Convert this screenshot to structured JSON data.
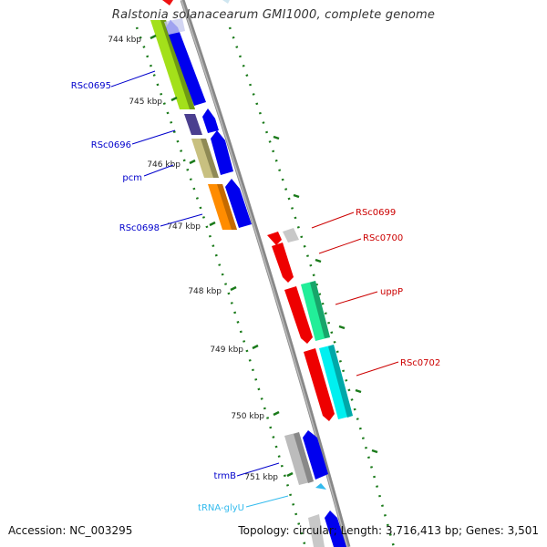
{
  "title": "Ralstonia solanacearum GMI1000, complete genome",
  "footer": {
    "accession": "Accession: NC_003295",
    "topology": "Topology: circular; Length: 3,716,413 bp; Genes: 3,501"
  },
  "ticks": [
    {
      "label": "744 kbp"
    },
    {
      "label": "745 kbp"
    },
    {
      "label": "746 kbp"
    },
    {
      "label": "747 kbp"
    },
    {
      "label": "748 kbp"
    },
    {
      "label": "749 kbp"
    },
    {
      "label": "750 kbp"
    },
    {
      "label": "751 kbp"
    }
  ],
  "genes": [
    {
      "label": "RSc0695",
      "strand": "reverse",
      "color": "#0000cc"
    },
    {
      "label": "RSc0696",
      "strand": "reverse",
      "color": "#0000cc"
    },
    {
      "label": "pcm",
      "strand": "reverse",
      "color": "#0000cc"
    },
    {
      "label": "RSc0698",
      "strand": "reverse",
      "color": "#0000cc"
    },
    {
      "label": "RSc0699",
      "strand": "forward",
      "color": "#cc0000"
    },
    {
      "label": "RSc0700",
      "strand": "forward",
      "color": "#cc0000"
    },
    {
      "label": "uppP",
      "strand": "forward",
      "color": "#cc0000"
    },
    {
      "label": "RSc0702",
      "strand": "forward",
      "color": "#cc0000"
    },
    {
      "label": "trmB",
      "strand": "reverse",
      "color": "#0000cc"
    },
    {
      "label": "tRNA-glyU",
      "strand": "reverse",
      "color": "#33bbdd"
    }
  ],
  "colors": {
    "backbone": "#888888",
    "tick": "#1a7a1a",
    "reverse_arrow": "#0000ee",
    "forward_arrow": "#ee0000"
  }
}
